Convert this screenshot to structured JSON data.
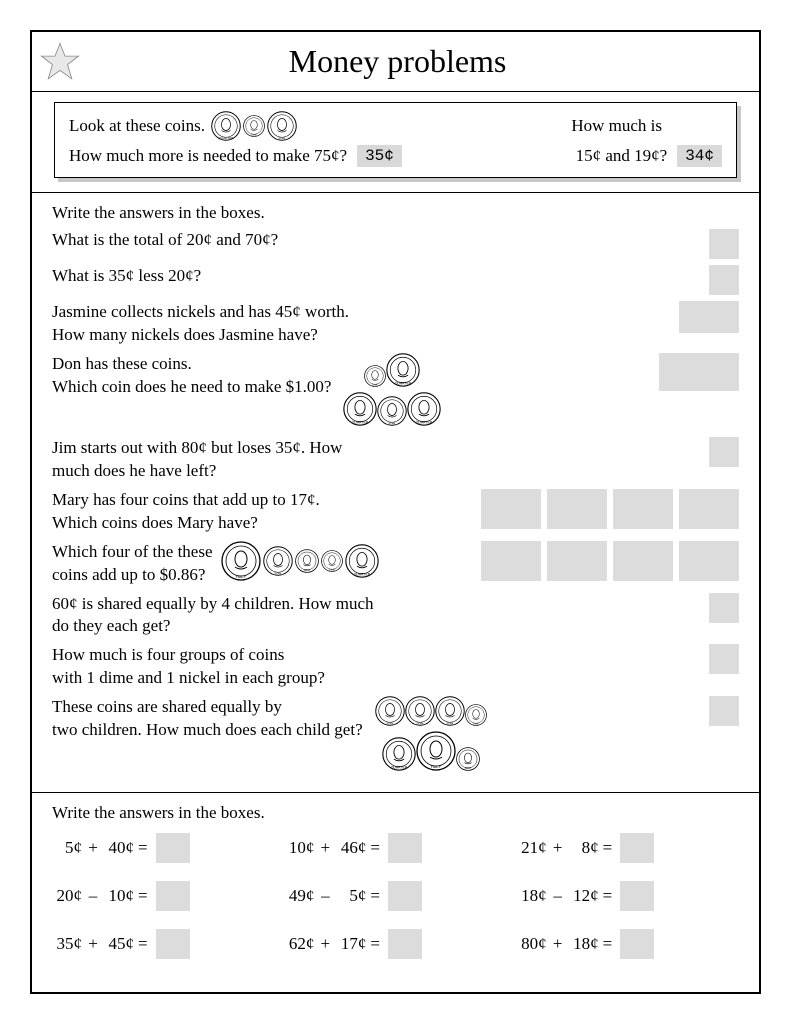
{
  "title": "Money problems",
  "example": {
    "line1": "Look at these coins.",
    "q1": "How much more is needed to make 75¢?",
    "a1": "35¢",
    "q2a": "How much is",
    "q2b": "15¢ and 19¢?",
    "a2": "34¢",
    "coins": [
      "quarter",
      "dime",
      "nickel"
    ]
  },
  "section1": {
    "instructions": "Write the answers in the boxes.",
    "questions": [
      {
        "text": "What is the total of 20¢ and 70¢?",
        "box": "s"
      },
      {
        "text": "What is 35¢ less 20¢?",
        "box": "s"
      },
      {
        "text": "Jasmine collects nickels and has 45¢ worth.\nHow many nickels does Jasmine have?",
        "box": "m"
      },
      {
        "text": "Don has these coins.\nWhich coin does he need to make $1.00?",
        "box": "l",
        "coins": [
          [
            "dime",
            "quarter"
          ],
          [
            "quarter",
            "nickel",
            "quarter"
          ]
        ]
      },
      {
        "text": "Jim starts out with 80¢ but loses 35¢.  How much does he have left?",
        "box": "s",
        "wide": true
      },
      {
        "text": "Mary has four coins that add up to 17¢.\nWhich coins does Mary have?",
        "boxrow": 4
      },
      {
        "text": "Which four of the these\ncoins add up to $0.86?",
        "boxrow": 4,
        "coins_inline": [
          "half",
          "nickel",
          "penny",
          "dime",
          "quarter"
        ]
      },
      {
        "text": "60¢ is shared equally by 4 children. How much do they each get?",
        "box": "s",
        "wide": true
      },
      {
        "text": "How much is four groups of coins\nwith 1 dime and 1 nickel in each group?",
        "box": "s"
      },
      {
        "text": "These coins are shared equally by\ntwo children. How much does each child get?",
        "box": "s",
        "coins": [
          [
            "nickel",
            "nickel",
            "nickel",
            "dime"
          ],
          [
            "quarter",
            "half",
            "penny"
          ]
        ]
      }
    ]
  },
  "section2": {
    "instructions": "Write the answers in the boxes.",
    "problems": [
      {
        "a": "5¢",
        "op": "+",
        "b": "40¢"
      },
      {
        "a": "10¢",
        "op": "+",
        "b": "46¢"
      },
      {
        "a": "21¢",
        "op": "+",
        "b": "8¢"
      },
      {
        "a": "20¢",
        "op": "–",
        "b": "10¢"
      },
      {
        "a": "49¢",
        "op": "–",
        "b": "5¢"
      },
      {
        "a": "18¢",
        "op": "–",
        "b": "12¢"
      },
      {
        "a": "35¢",
        "op": "+",
        "b": "45¢"
      },
      {
        "a": "62¢",
        "op": "+",
        "b": "17¢"
      },
      {
        "a": "80¢",
        "op": "+",
        "b": "18¢"
      }
    ]
  },
  "style": {
    "answer_box_color": "#dcdcdc",
    "border_color": "#000000",
    "font": "Georgia",
    "title_fontsize": 32,
    "body_fontsize": 17
  }
}
